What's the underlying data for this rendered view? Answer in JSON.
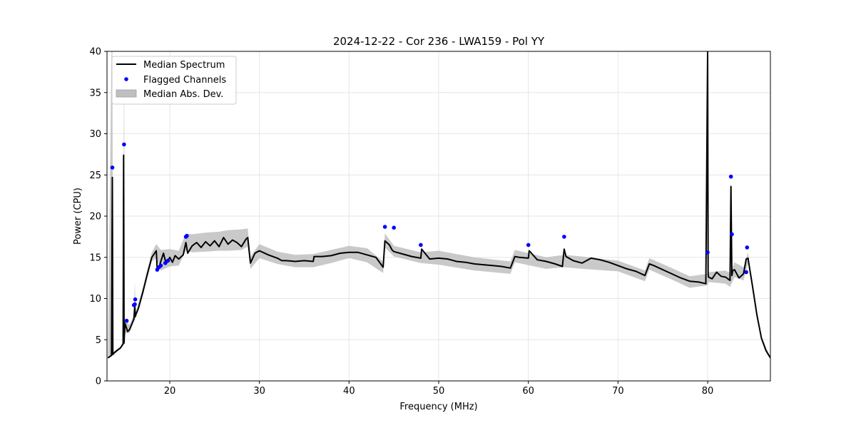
{
  "chart_data": {
    "type": "line",
    "title": "2024-12-22 - Cor 236 - LWA159 - Pol YY",
    "xlabel": "Frequency (MHz)",
    "ylabel": "Power (CPU)",
    "xlim": [
      13,
      87
    ],
    "ylim": [
      0,
      40
    ],
    "xticks": [
      20,
      30,
      40,
      50,
      60,
      70,
      80
    ],
    "yticks": [
      0,
      5,
      10,
      15,
      20,
      25,
      30,
      35,
      40
    ],
    "grid": true,
    "legend_position": "upper-left",
    "legend": [
      {
        "label": "Median Spectrum",
        "kind": "line",
        "color": "#000000"
      },
      {
        "label": "Flagged Channels",
        "kind": "marker",
        "color": "#0000ff"
      },
      {
        "label": "Median Abs. Dev.",
        "kind": "band",
        "color": "#bfbfbf"
      }
    ],
    "series": [
      {
        "name": "Median Spectrum",
        "color": "#000000",
        "x": [
          13.1,
          13.5,
          13.6,
          13.65,
          13.7,
          14.0,
          14.5,
          14.8,
          14.85,
          14.9,
          15.0,
          15.3,
          15.5,
          16.0,
          16.1,
          16.15,
          16.2,
          16.5,
          17.0,
          17.5,
          18.0,
          18.5,
          18.6,
          18.8,
          19.0,
          19.3,
          19.6,
          19.8,
          20.0,
          20.3,
          20.6,
          21.0,
          21.5,
          21.8,
          22.0,
          22.5,
          23.0,
          23.5,
          24.0,
          24.5,
          25.0,
          25.5,
          26.0,
          26.5,
          27.0,
          27.5,
          28.0,
          28.5,
          28.7,
          29.0,
          29.5,
          30.0,
          31.0,
          32.0,
          32.5,
          33.0,
          34.0,
          35.0,
          36.0,
          36.1,
          37.0,
          38.0,
          39.0,
          40.0,
          41.0,
          42.0,
          43.0,
          43.8,
          44.0,
          44.5,
          44.8,
          45.0,
          46.0,
          47.0,
          48.0,
          48.1,
          49.0,
          50.0,
          51.0,
          52.0,
          53.0,
          54.0,
          55.0,
          56.0,
          57.0,
          58.0,
          58.5,
          59.0,
          60.0,
          60.1,
          61.0,
          62.0,
          63.0,
          63.8,
          64.0,
          64.2,
          65.0,
          66.0,
          67.0,
          68.0,
          69.0,
          70.0,
          71.0,
          72.0,
          73.0,
          73.5,
          74.0,
          75.0,
          76.0,
          77.0,
          78.0,
          79.0,
          79.8,
          80.0,
          80.05,
          80.1,
          80.5,
          81.0,
          81.5,
          82.0,
          82.5,
          82.6,
          82.7,
          82.8,
          83.0,
          83.5,
          84.0,
          84.3,
          84.5,
          85.0,
          85.5,
          86.0,
          86.5,
          87.0
        ],
        "y": [
          2.8,
          3.1,
          24.7,
          3.2,
          3.3,
          3.6,
          4.0,
          4.5,
          27.4,
          4.6,
          7.0,
          6.0,
          6.2,
          7.5,
          9.2,
          7.8,
          8.0,
          8.8,
          10.8,
          13.0,
          15.0,
          15.8,
          13.5,
          13.8,
          14.5,
          15.5,
          14.2,
          14.6,
          15.0,
          14.4,
          15.2,
          14.8,
          15.3,
          16.8,
          15.5,
          16.4,
          16.8,
          16.2,
          16.9,
          16.4,
          17.0,
          16.3,
          17.4,
          16.6,
          17.1,
          16.8,
          16.3,
          17.2,
          17.4,
          14.3,
          15.5,
          15.8,
          15.3,
          14.9,
          14.6,
          14.6,
          14.5,
          14.6,
          14.5,
          15.1,
          15.1,
          15.2,
          15.5,
          15.6,
          15.6,
          15.3,
          15.0,
          13.8,
          17.0,
          16.5,
          15.9,
          15.7,
          15.4,
          15.1,
          14.9,
          16.0,
          14.8,
          14.9,
          14.8,
          14.5,
          14.4,
          14.2,
          14.1,
          14.0,
          13.9,
          13.7,
          15.1,
          15.0,
          14.9,
          15.8,
          14.7,
          14.5,
          14.2,
          13.9,
          16.0,
          15.1,
          14.6,
          14.3,
          14.9,
          14.7,
          14.4,
          14.0,
          13.6,
          13.3,
          12.8,
          14.2,
          14.0,
          13.5,
          13.0,
          12.5,
          12.1,
          12.0,
          11.8,
          40.0,
          13.0,
          12.6,
          12.4,
          13.2,
          12.7,
          12.6,
          12.2,
          23.6,
          12.8,
          13.4,
          13.5,
          12.5,
          13.0,
          14.8,
          14.9,
          11.5,
          8.0,
          5.2,
          3.7,
          2.8
        ]
      },
      {
        "name": "Flagged Channels",
        "color": "#0000ff",
        "x": [
          13.6,
          14.9,
          15.2,
          16.0,
          16.1,
          16.15,
          18.6,
          18.8,
          19.0,
          19.5,
          19.8,
          21.8,
          21.9,
          44.0,
          45.0,
          48.0,
          60.0,
          64.0,
          80.0,
          82.6,
          82.7,
          84.3,
          84.4
        ],
        "y": [
          25.9,
          28.7,
          7.3,
          9.2,
          9.3,
          9.9,
          13.5,
          13.8,
          14.0,
          14.3,
          14.6,
          17.5,
          17.6,
          18.7,
          18.6,
          16.5,
          16.5,
          17.5,
          15.6,
          24.8,
          17.8,
          13.2,
          16.2
        ]
      }
    ],
    "band": {
      "name": "Median Abs. Dev.",
      "color": "#bfbfbf",
      "x": [
        13.1,
        13.5,
        13.6,
        13.7,
        14.5,
        14.8,
        14.9,
        15.0,
        15.5,
        16.0,
        16.1,
        16.2,
        17.0,
        18.0,
        18.5,
        19.0,
        20.0,
        21.0,
        21.8,
        22.5,
        24.0,
        25.5,
        26.5,
        28.0,
        28.7,
        29.0,
        30.0,
        32.0,
        34.0,
        36.0,
        38.0,
        40.0,
        42.0,
        43.8,
        44.0,
        45.0,
        48.0,
        50.0,
        54.0,
        58.0,
        58.5,
        62.0,
        64.0,
        66.0,
        70.0,
        73.0,
        73.5,
        76.0,
        78.0,
        80.0,
        80.1,
        82.0,
        82.5,
        83.0,
        84.0,
        84.5,
        85.0,
        86.0,
        87.0
      ],
      "low": [
        2.7,
        3.0,
        3.1,
        3.1,
        3.9,
        4.3,
        4.4,
        5.8,
        5.8,
        7.2,
        7.4,
        7.6,
        10.4,
        14.5,
        14.9,
        13.4,
        13.9,
        14.0,
        15.8,
        15.6,
        15.7,
        15.8,
        15.8,
        15.9,
        16.3,
        13.6,
        14.9,
        14.2,
        13.8,
        13.8,
        14.3,
        14.9,
        14.4,
        13.1,
        16.2,
        15.1,
        14.3,
        14.1,
        13.4,
        13.0,
        14.4,
        13.6,
        13.8,
        13.6,
        13.3,
        12.1,
        13.5,
        12.3,
        11.3,
        11.6,
        12.0,
        11.8,
        11.4,
        12.6,
        12.2,
        14.2,
        11.4,
        5.1,
        2.7
      ],
      "high": [
        3.0,
        40.0,
        40.0,
        3.5,
        4.2,
        4.8,
        40.0,
        7.6,
        6.8,
        8.0,
        12.0,
        8.4,
        11.3,
        15.6,
        16.6,
        15.9,
        16.0,
        15.8,
        17.9,
        17.8,
        18.0,
        18.1,
        18.3,
        18.4,
        18.5,
        15.1,
        16.6,
        15.7,
        15.3,
        15.4,
        15.9,
        16.4,
        16.1,
        14.5,
        17.9,
        16.4,
        15.6,
        15.8,
        15.0,
        14.5,
        15.9,
        15.0,
        15.3,
        15.1,
        14.6,
        13.4,
        14.9,
        13.7,
        12.7,
        13.0,
        13.2,
        13.4,
        13.1,
        14.4,
        13.8,
        15.6,
        11.7,
        5.4,
        2.9
      ]
    }
  }
}
